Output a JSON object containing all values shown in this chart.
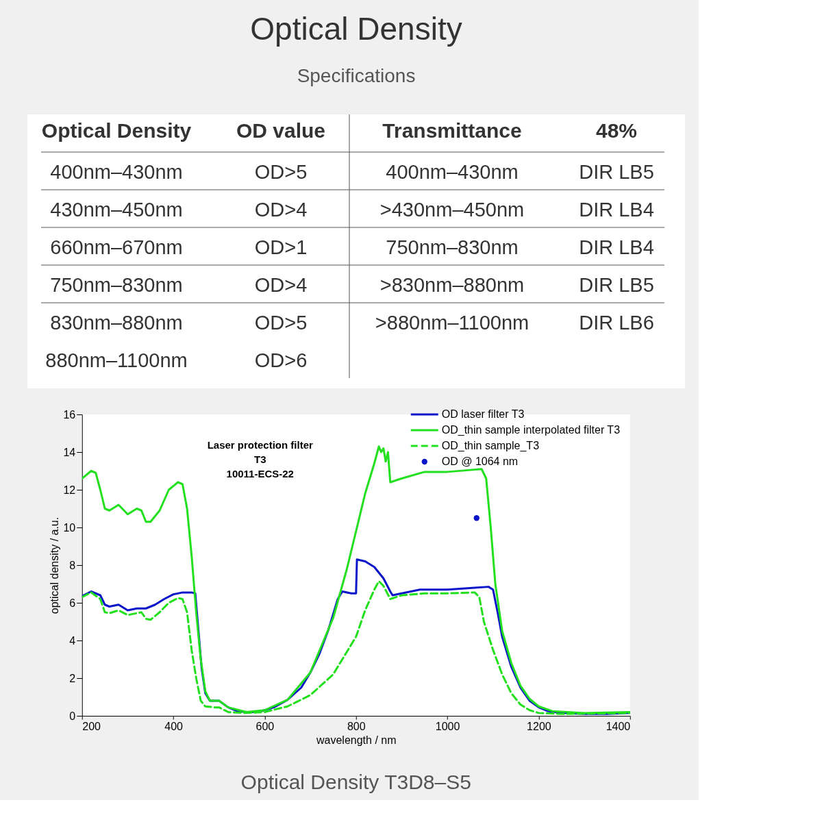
{
  "chart_data": [
    {
      "type": "other",
      "title": "Optical Density",
      "subtitle": "Specifications",
      "categories": [
        "Optical Density",
        "OD value",
        "Transmittance",
        "48%"
      ],
      "annotations": [
        "400nm–430nm",
        "OD>5",
        "400nm–430nm",
        "DIR LB5",
        "430nm–450nm",
        "OD>4",
        ">430nm–450nm",
        "DIR LB4",
        "660nm–670nm",
        "OD>1",
        "750nm–830nm",
        "DIR LB4",
        "750nm–830nm",
        "OD>4",
        ">830nm–880nm",
        "DIR LB5",
        "830nm–880nm",
        "OD>5",
        ">880nm–1100nm",
        "DIR LB6",
        "880nm–1100nm",
        "OD>6"
      ]
    },
    {
      "type": "line",
      "xlabel": "wavelength / nm",
      "ylabel": "optical density / a.u.",
      "xlim": [
        200,
        1400
      ],
      "xticks": [
        200,
        400,
        600,
        800,
        1000,
        1200,
        1400
      ],
      "ylim": [
        0,
        16
      ],
      "yticks": [
        0,
        2,
        4,
        6,
        8,
        10,
        12,
        14,
        16
      ],
      "grid": false,
      "legend": "top right",
      "annotations": [
        "Laser protection filter",
        "T3",
        "10011-ECS-22",
        "Optical Density T3D8–S5"
      ],
      "series": [
        {
          "name": "OD laser filter T3",
          "color": "#0a14c8",
          "type": "line",
          "line_style": "solid",
          "x": [
            200,
            220,
            240,
            250,
            260,
            280,
            300,
            320,
            340,
            360,
            380,
            400,
            420,
            440,
            448,
            455,
            462,
            470,
            480,
            500,
            520,
            540,
            560,
            580,
            600,
            620,
            650,
            680,
            700,
            720,
            740,
            760,
            770,
            790,
            800,
            802,
            820,
            840,
            860,
            875,
            880,
            900,
            940,
            1000,
            1060,
            1090,
            1100,
            1110,
            1120,
            1140,
            1160,
            1180,
            1200,
            1220,
            1250,
            1300,
            1350,
            1400
          ],
          "values": [
            6.35,
            6.6,
            6.4,
            5.9,
            5.8,
            5.9,
            5.6,
            5.7,
            5.7,
            5.9,
            6.2,
            6.45,
            6.55,
            6.55,
            6.5,
            4.5,
            2.5,
            1.2,
            0.8,
            0.8,
            0.45,
            0.25,
            0.2,
            0.2,
            0.3,
            0.45,
            0.85,
            1.5,
            2.3,
            3.3,
            4.6,
            6.2,
            6.6,
            6.5,
            6.5,
            8.3,
            8.2,
            7.9,
            7.3,
            6.6,
            6.4,
            6.5,
            6.7,
            6.7,
            6.8,
            6.85,
            6.7,
            5.5,
            4.2,
            2.6,
            1.5,
            0.8,
            0.45,
            0.25,
            0.15,
            0.1,
            0.1,
            0.15
          ]
        },
        {
          "name": "OD_thin sample interpolated filter T3",
          "color": "#22e01e",
          "type": "line",
          "line_style": "solid",
          "x": [
            200,
            220,
            230,
            240,
            250,
            260,
            280,
            300,
            320,
            330,
            340,
            350,
            370,
            390,
            410,
            420,
            430,
            440,
            450,
            460,
            470,
            480,
            500,
            520,
            560,
            600,
            650,
            700,
            750,
            780,
            800,
            820,
            840,
            850,
            855,
            860,
            865,
            870,
            875,
            900,
            950,
            1000,
            1050,
            1075,
            1085,
            1095,
            1105,
            1120,
            1140,
            1160,
            1180,
            1200,
            1230,
            1300,
            1400
          ],
          "values": [
            12.6,
            13.0,
            12.9,
            12.0,
            11.0,
            10.9,
            11.2,
            10.7,
            11.0,
            10.9,
            10.3,
            10.3,
            10.9,
            12.0,
            12.4,
            12.3,
            11.0,
            8.5,
            5.5,
            3.0,
            1.3,
            0.8,
            0.8,
            0.45,
            0.2,
            0.3,
            0.85,
            2.3,
            5.2,
            7.8,
            9.8,
            11.8,
            13.4,
            14.3,
            14.0,
            14.2,
            13.5,
            14.0,
            12.4,
            12.6,
            12.95,
            12.95,
            13.05,
            13.1,
            12.6,
            10.0,
            7.0,
            4.5,
            2.8,
            1.6,
            0.9,
            0.5,
            0.25,
            0.15,
            0.2
          ]
        },
        {
          "name": "OD_thin sample_T3",
          "color": "#22e01e",
          "type": "line",
          "line_style": "dashed",
          "x": [
            200,
            220,
            240,
            250,
            260,
            280,
            300,
            320,
            330,
            340,
            350,
            370,
            390,
            410,
            420,
            430,
            440,
            450,
            460,
            470,
            490,
            500,
            520,
            560,
            600,
            650,
            700,
            750,
            780,
            800,
            820,
            840,
            850,
            860,
            875,
            900,
            950,
            1000,
            1060,
            1070,
            1080,
            1100,
            1120,
            1140,
            1160,
            1180,
            1200,
            1250,
            1400
          ],
          "values": [
            6.3,
            6.55,
            6.2,
            5.5,
            5.45,
            5.6,
            5.35,
            5.45,
            5.5,
            5.15,
            5.1,
            5.5,
            6.0,
            6.25,
            6.2,
            5.5,
            3.5,
            2.0,
            0.8,
            0.5,
            0.45,
            0.45,
            0.2,
            0.15,
            0.2,
            0.5,
            1.1,
            2.2,
            3.4,
            4.2,
            5.6,
            6.7,
            7.15,
            6.9,
            6.2,
            6.4,
            6.5,
            6.5,
            6.55,
            6.3,
            5.0,
            3.5,
            2.2,
            1.2,
            0.6,
            0.3,
            0.15,
            0.1,
            0.15
          ]
        },
        {
          "name": "OD @ 1064 nm",
          "color": "#0a14c8",
          "type": "scatter",
          "marker": "circle",
          "x": [
            1064
          ],
          "values": [
            10.5
          ]
        }
      ]
    }
  ]
}
